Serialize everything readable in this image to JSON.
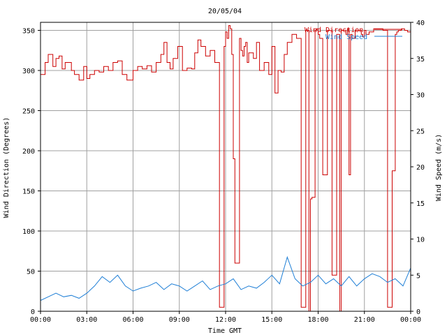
{
  "chart_data": {
    "type": "line",
    "title": "20/05/04",
    "xlabel": "Time GMT",
    "ylabel_left": "Wind Direction (Degrees)",
    "ylabel_right": "Wind Speed (m/s)",
    "x_tick_labels": [
      "00:00",
      "03:00",
      "06:00",
      "09:00",
      "12:00",
      "15:00",
      "18:00",
      "21:00",
      "00:00"
    ],
    "x_range_hours": [
      0,
      24
    ],
    "y_left_ticks": [
      "0",
      "50",
      "100",
      "150",
      "200",
      "250",
      "300",
      "350"
    ],
    "y_left_range": [
      0,
      360
    ],
    "y_right_ticks": [
      "0",
      "5",
      "10",
      "15",
      "20",
      "25",
      "30",
      "35",
      "40"
    ],
    "y_right_range": [
      0,
      40
    ],
    "grid": true,
    "legend_position": "top-right",
    "colors": {
      "direction": "#cc0000",
      "speed": "#1f7fd6",
      "grid": "#a0a0a0"
    },
    "series": [
      {
        "name": "Wind Direction",
        "axis": "left",
        "style": "step",
        "x_hours": [
          0,
          0.3,
          0.5,
          0.8,
          1.0,
          1.2,
          1.4,
          1.6,
          2.0,
          2.2,
          2.5,
          2.8,
          3.0,
          3.2,
          3.5,
          3.8,
          4.1,
          4.4,
          4.7,
          5.0,
          5.3,
          5.6,
          6.0,
          6.3,
          6.6,
          6.9,
          7.2,
          7.5,
          7.8,
          8.0,
          8.2,
          8.4,
          8.6,
          8.9,
          9.2,
          9.5,
          9.8,
          10.0,
          10.2,
          10.4,
          10.7,
          11.0,
          11.3,
          11.6,
          11.9,
          12.0,
          12.1,
          12.2,
          12.3,
          12.4,
          12.5,
          12.6,
          12.9,
          13.0,
          13.1,
          13.2,
          13.3,
          13.4,
          13.5,
          13.8,
          14.0,
          14.2,
          14.5,
          14.8,
          15.0,
          15.2,
          15.4,
          15.6,
          15.8,
          16.0,
          16.3,
          16.6,
          16.9,
          17.2,
          17.4,
          17.5,
          17.6,
          17.8,
          17.9,
          18.0,
          18.1,
          18.3,
          18.6,
          18.9,
          19.2,
          19.3,
          19.4,
          19.5,
          19.8,
          19.9,
          20.0,
          20.1,
          20.2,
          20.4,
          20.8,
          20.9,
          21.0,
          21.1,
          21.3,
          21.6,
          21.9,
          22.2,
          22.5,
          22.8,
          23.0,
          23.1,
          23.2,
          23.4,
          23.6,
          23.8,
          24.0
        ],
        "values": [
          295,
          310,
          320,
          305,
          315,
          318,
          302,
          310,
          300,
          295,
          288,
          305,
          290,
          295,
          300,
          298,
          305,
          300,
          310,
          312,
          295,
          288,
          300,
          305,
          302,
          306,
          298,
          310,
          320,
          335,
          310,
          302,
          315,
          330,
          300,
          303,
          302,
          322,
          338,
          330,
          318,
          325,
          310,
          5,
          330,
          348,
          340,
          356,
          352,
          320,
          190,
          60,
          340,
          325,
          318,
          330,
          335,
          310,
          322,
          315,
          335,
          300,
          310,
          295,
          330,
          272,
          300,
          298,
          320,
          335,
          345,
          340,
          5,
          350,
          0,
          140,
          142,
          350,
          352,
          345,
          340,
          170,
          350,
          45,
          345,
          345,
          0,
          350,
          345,
          352,
          170,
          345,
          340,
          350,
          345,
          342,
          350,
          345,
          348,
          352,
          352,
          350,
          5,
          175,
          345,
          348,
          350,
          352,
          350,
          348,
          350
        ]
      },
      {
        "name": "Wind Speed",
        "axis": "right",
        "style": "line",
        "x_hours": [
          0,
          0.5,
          1.0,
          1.5,
          2.0,
          2.5,
          3.0,
          3.5,
          4.0,
          4.5,
          5.0,
          5.5,
          6.0,
          6.5,
          7.0,
          7.5,
          8.0,
          8.5,
          9.0,
          9.5,
          10.0,
          10.5,
          11.0,
          11.5,
          12.0,
          12.5,
          13.0,
          13.5,
          14.0,
          14.5,
          15.0,
          15.5,
          16.0,
          16.5,
          17.0,
          17.5,
          18.0,
          18.5,
          19.0,
          19.5,
          20.0,
          20.5,
          21.0,
          21.5,
          22.0,
          22.5,
          23.0,
          23.5,
          24.0
        ],
        "values": [
          1.5,
          2.0,
          2.5,
          2.0,
          2.2,
          1.8,
          2.5,
          3.5,
          4.8,
          4.0,
          5.0,
          3.5,
          2.8,
          3.2,
          3.5,
          4.0,
          3.0,
          3.8,
          3.5,
          2.8,
          3.5,
          4.2,
          3.0,
          3.5,
          3.8,
          4.5,
          3.0,
          3.5,
          3.2,
          4.0,
          5.0,
          3.8,
          7.5,
          4.5,
          3.5,
          4.0,
          5.0,
          3.8,
          4.5,
          3.5,
          4.8,
          3.5,
          4.5,
          5.2,
          4.8,
          4.0,
          4.5,
          3.5,
          6.0
        ]
      }
    ]
  }
}
